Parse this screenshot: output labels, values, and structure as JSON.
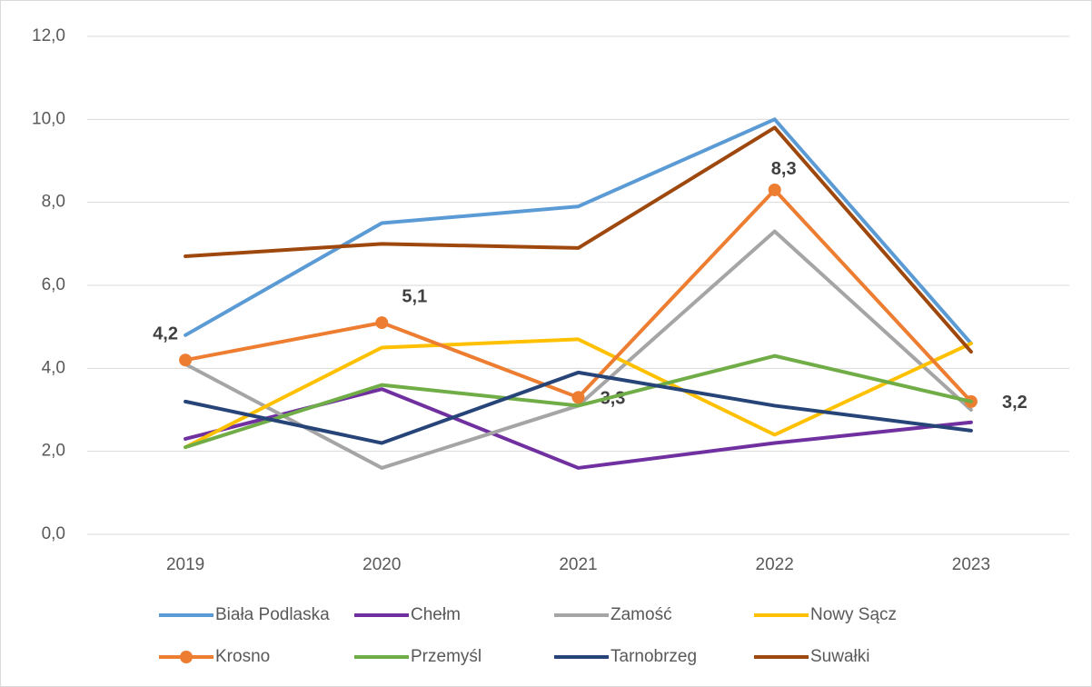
{
  "chart_data": {
    "type": "line",
    "categories": [
      "2019",
      "2020",
      "2021",
      "2022",
      "2023"
    ],
    "series": [
      {
        "name": "Biała Podlaska",
        "color": "#5b9bd5",
        "values": [
          4.8,
          7.5,
          7.9,
          10.0,
          4.6
        ]
      },
      {
        "name": "Chełm",
        "color": "#7030a0",
        "values": [
          2.3,
          3.5,
          1.6,
          2.2,
          2.7
        ]
      },
      {
        "name": "Zamość",
        "color": "#a5a5a5",
        "values": [
          4.1,
          1.6,
          3.1,
          7.3,
          3.0
        ]
      },
      {
        "name": "Nowy Sącz",
        "color": "#ffc000",
        "values": [
          2.1,
          4.5,
          4.7,
          2.4,
          4.6
        ]
      },
      {
        "name": "Krosno",
        "color": "#ed7d31",
        "markers": true,
        "values": [
          4.2,
          5.1,
          3.3,
          8.3,
          3.2
        ],
        "value_labels": [
          "4,2",
          "5,1",
          "3,3",
          "8,3",
          "3,2"
        ]
      },
      {
        "name": "Przemyśl",
        "color": "#70ad47",
        "values": [
          2.1,
          3.6,
          3.1,
          4.3,
          3.2
        ]
      },
      {
        "name": "Tarnobrzeg",
        "color": "#264478",
        "values": [
          3.2,
          2.2,
          3.9,
          3.1,
          2.5
        ]
      },
      {
        "name": "Suwałki",
        "color": "#9e480e",
        "values": [
          6.7,
          7.0,
          6.9,
          9.8,
          4.4
        ]
      }
    ],
    "ylim": [
      0,
      12
    ],
    "yticks": [
      {
        "value": 0,
        "label": "0,0"
      },
      {
        "value": 2,
        "label": "2,0"
      },
      {
        "value": 4,
        "label": "4,0"
      },
      {
        "value": 6,
        "label": "6,0"
      },
      {
        "value": 8,
        "label": "8,0"
      },
      {
        "value": 10,
        "label": "10,0"
      },
      {
        "value": 12,
        "label": "12,0"
      }
    ],
    "grid": true,
    "legend": "bottom"
  }
}
